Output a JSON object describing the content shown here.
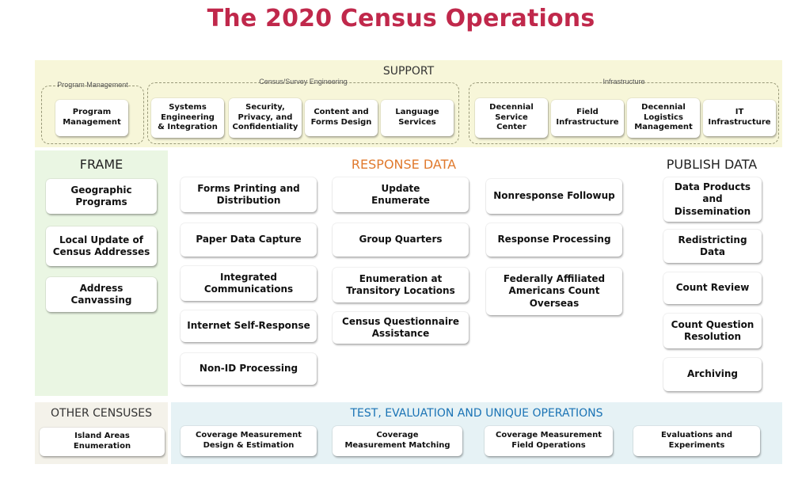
{
  "title": "The 2020 Census Operations",
  "support": {
    "heading": "SUPPORT",
    "program_management": {
      "label": "Program Management",
      "items": [
        "Program\nManagement"
      ]
    },
    "census_survey_engineering": {
      "label": "Census/Survey Engineering",
      "items": [
        "Systems\nEngineering\n& Integration",
        "Security,\nPrivacy, and\nConfidentiality",
        "Content and\nForms Design",
        "Language\nServices"
      ]
    },
    "infrastructure": {
      "label": "Infrastructure",
      "items": [
        "Decennial\nService\nCenter",
        "Field\nInfrastructure",
        "Decennial\nLogistics\nManagement",
        "IT Infrastructure"
      ]
    }
  },
  "frame": {
    "heading": "FRAME",
    "items": [
      "Geographic\nPrograms",
      "Local Update of\nCensus Addresses",
      "Address Canvassing"
    ]
  },
  "response_data": {
    "heading": "RESPONSE DATA",
    "col1": [
      "Forms Printing and\nDistribution",
      "Paper Data Capture",
      "Integrated\nCommunications",
      "Internet Self-Response",
      "Non-ID Processing"
    ],
    "col2": [
      "Update\nEnumerate",
      "Group Quarters",
      "Enumeration at\nTransitory Locations",
      "Census Questionnaire\nAssistance"
    ],
    "col3": [
      "Nonresponse Followup",
      "Response Processing",
      "Federally Affiliated\nAmericans Count\nOverseas"
    ]
  },
  "publish_data": {
    "heading": "PUBLISH DATA",
    "items": [
      "Data Products\nand\nDissemination",
      "Redistricting\nData",
      "Count Review",
      "Count Question\nResolution",
      "Archiving"
    ]
  },
  "other_censuses": {
    "heading": "OTHER CENSUSES",
    "items": [
      "Island Areas\nEnumeration"
    ]
  },
  "test_evaluation": {
    "heading": "TEST, EVALUATION AND UNIQUE  OPERATIONS",
    "items": [
      "Coverage Measurement\nDesign & Estimation",
      "Coverage\nMeasurement Matching",
      "Coverage Measurement\nField Operations",
      "Evaluations and\nExperiments"
    ]
  }
}
